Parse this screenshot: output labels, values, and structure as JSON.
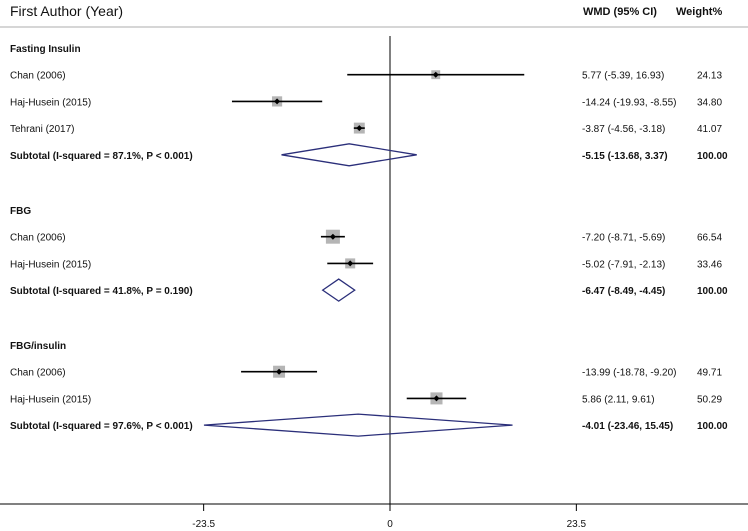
{
  "chart_data": {
    "type": "forest",
    "header": {
      "study": "First Author (Year)",
      "effect": "WMD (95% CI)",
      "weight": "Weight%"
    },
    "xaxis": {
      "ticks": [
        -23.5,
        0,
        23.5
      ],
      "tick_labels": [
        "-23.5",
        "0",
        "23.5"
      ],
      "null_line": 0
    },
    "colors": {
      "square": "#b5b5b5",
      "diamond": "#2b2f7a",
      "line": "#000000"
    },
    "groups": [
      {
        "title": "Fasting Insulin",
        "studies": [
          {
            "label": "Chan (2006)",
            "est": 5.77,
            "lo": -5.39,
            "hi": 16.93,
            "text": "5.77 (-5.39, 16.93)",
            "weight": "24.13"
          },
          {
            "label": "Haj-Husein (2015)",
            "est": -14.24,
            "lo": -19.93,
            "hi": -8.55,
            "text": "-14.24 (-19.93, -8.55)",
            "weight": "34.80"
          },
          {
            "label": "Tehrani (2017)",
            "est": -3.87,
            "lo": -4.56,
            "hi": -3.18,
            "text": "-3.87 (-4.56, -3.18)",
            "weight": "41.07"
          }
        ],
        "subtotal": {
          "label": "Subtotal  (I-squared = 87.1%, P < 0.001)",
          "est": -5.15,
          "lo": -13.68,
          "hi": 3.37,
          "text": "-5.15 (-13.68, 3.37)",
          "weight": "100.00"
        }
      },
      {
        "title": "FBG",
        "studies": [
          {
            "label": "Chan (2006)",
            "est": -7.2,
            "lo": -8.71,
            "hi": -5.69,
            "text": "-7.20 (-8.71, -5.69)",
            "weight": "66.54"
          },
          {
            "label": "Haj-Husein (2015)",
            "est": -5.02,
            "lo": -7.91,
            "hi": -2.13,
            "text": "-5.02 (-7.91, -2.13)",
            "weight": "33.46"
          }
        ],
        "subtotal": {
          "label": "Subtotal  (I-squared = 41.8%, P = 0.190)",
          "est": -6.47,
          "lo": -8.49,
          "hi": -4.45,
          "text": "-6.47 (-8.49, -4.45)",
          "weight": "100.00"
        }
      },
      {
        "title": "FBG/insulin",
        "studies": [
          {
            "label": "Chan (2006)",
            "est": -13.99,
            "lo": -18.78,
            "hi": -9.2,
            "text": "-13.99 (-18.78, -9.20)",
            "weight": "49.71"
          },
          {
            "label": "Haj-Husein (2015)",
            "est": 5.86,
            "lo": 2.11,
            "hi": 9.61,
            "text": "5.86 (2.11, 9.61)",
            "weight": "50.29"
          }
        ],
        "subtotal": {
          "label": "Subtotal  (I-squared = 97.6%, P < 0.001)",
          "est": -4.01,
          "lo": -23.46,
          "hi": 15.45,
          "text": "-4.01 (-23.46, 15.45)",
          "weight": "100.00"
        }
      }
    ]
  }
}
